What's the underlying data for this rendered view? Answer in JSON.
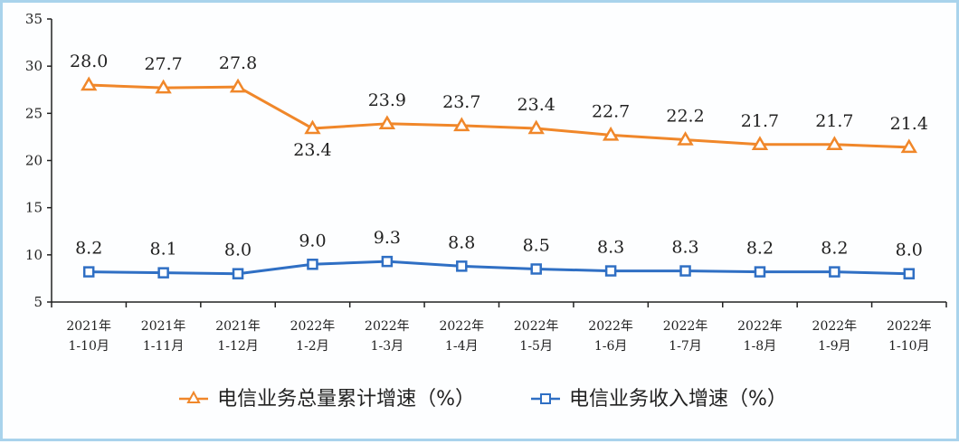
{
  "chart_data": {
    "type": "line",
    "categories": [
      [
        "2021年",
        "1-10月"
      ],
      [
        "2021年",
        "1-11月"
      ],
      [
        "2021年",
        "1-12月"
      ],
      [
        "2022年",
        "1-2月"
      ],
      [
        "2022年",
        "1-3月"
      ],
      [
        "2022年",
        "1-4月"
      ],
      [
        "2022年",
        "1-5月"
      ],
      [
        "2022年",
        "1-6月"
      ],
      [
        "2022年",
        "1-7月"
      ],
      [
        "2022年",
        "1-8月"
      ],
      [
        "2022年",
        "1-9月"
      ],
      [
        "2022年",
        "1-10月"
      ]
    ],
    "series": [
      {
        "name": "电信业务总量累计增速（%）",
        "values": [
          28.0,
          27.7,
          27.8,
          23.4,
          23.9,
          23.7,
          23.4,
          22.7,
          22.2,
          21.7,
          21.7,
          21.4
        ],
        "color": "#f0872a",
        "marker": "triangle"
      },
      {
        "name": "电信业务收入增速（%）",
        "values": [
          8.2,
          8.1,
          8.0,
          9.0,
          9.3,
          8.8,
          8.5,
          8.3,
          8.3,
          8.2,
          8.2,
          8.0
        ],
        "color": "#2f6fc4",
        "marker": "square"
      }
    ],
    "ylim": [
      5,
      35
    ],
    "yticks": [
      5,
      10,
      15,
      20,
      25,
      30,
      35
    ],
    "grid": false,
    "legend": "bottom"
  }
}
